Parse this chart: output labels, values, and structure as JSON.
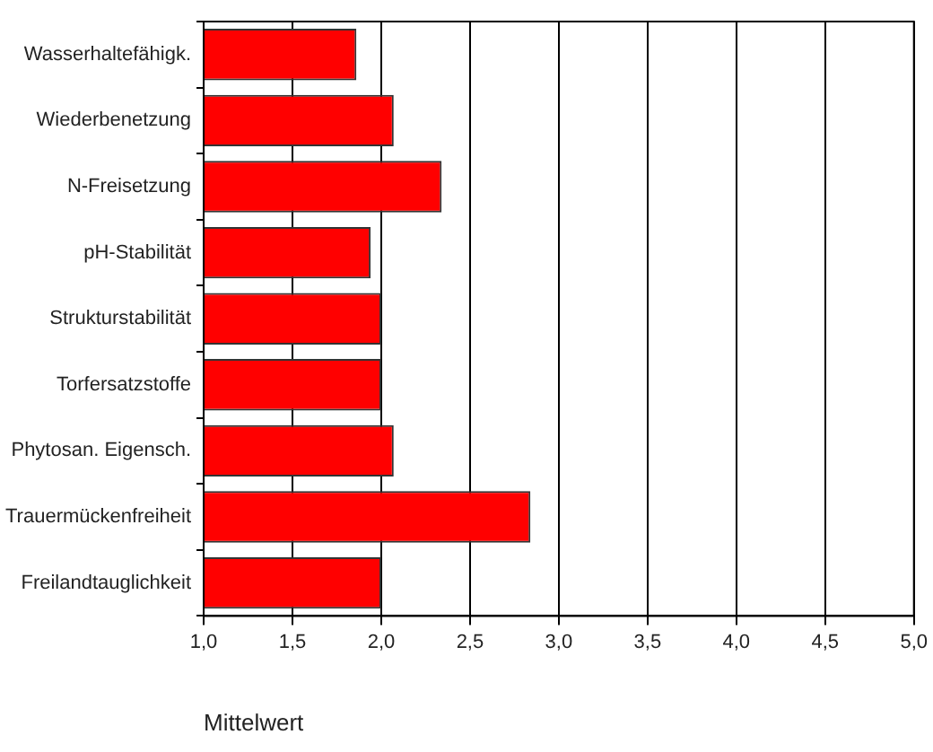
{
  "chart_data": {
    "type": "bar",
    "orientation": "horizontal",
    "xlabel": "Mittelwert",
    "categories": [
      "Wasserhaltefähigk.",
      "Wiederbenetzung",
      "N-Freisetzung",
      "pH-Stabilität",
      "Strukturstabilität",
      "Torfersatzstoffe",
      "Phytosan. Eigensch.",
      "Trauermückenfreiheit",
      "Freilandtauglichkeit"
    ],
    "values": [
      1.86,
      2.07,
      2.34,
      1.94,
      2.0,
      2.0,
      2.07,
      2.84,
      2.0
    ],
    "color": "#ff0000",
    "xlim": [
      1,
      5
    ],
    "xticks": [
      {
        "value": 1,
        "label": "1,0"
      },
      {
        "value": 1.5,
        "label": "1,5"
      },
      {
        "value": 2,
        "label": "2,0"
      },
      {
        "value": 2.5,
        "label": "2,5"
      },
      {
        "value": 3,
        "label": "3,0"
      },
      {
        "value": 3.5,
        "label": "3,5"
      },
      {
        "value": 4,
        "label": "4,0"
      },
      {
        "value": 4.5,
        "label": "4,5"
      },
      {
        "value": 5,
        "label": "5,0"
      }
    ],
    "grid": "x",
    "legend": false
  }
}
